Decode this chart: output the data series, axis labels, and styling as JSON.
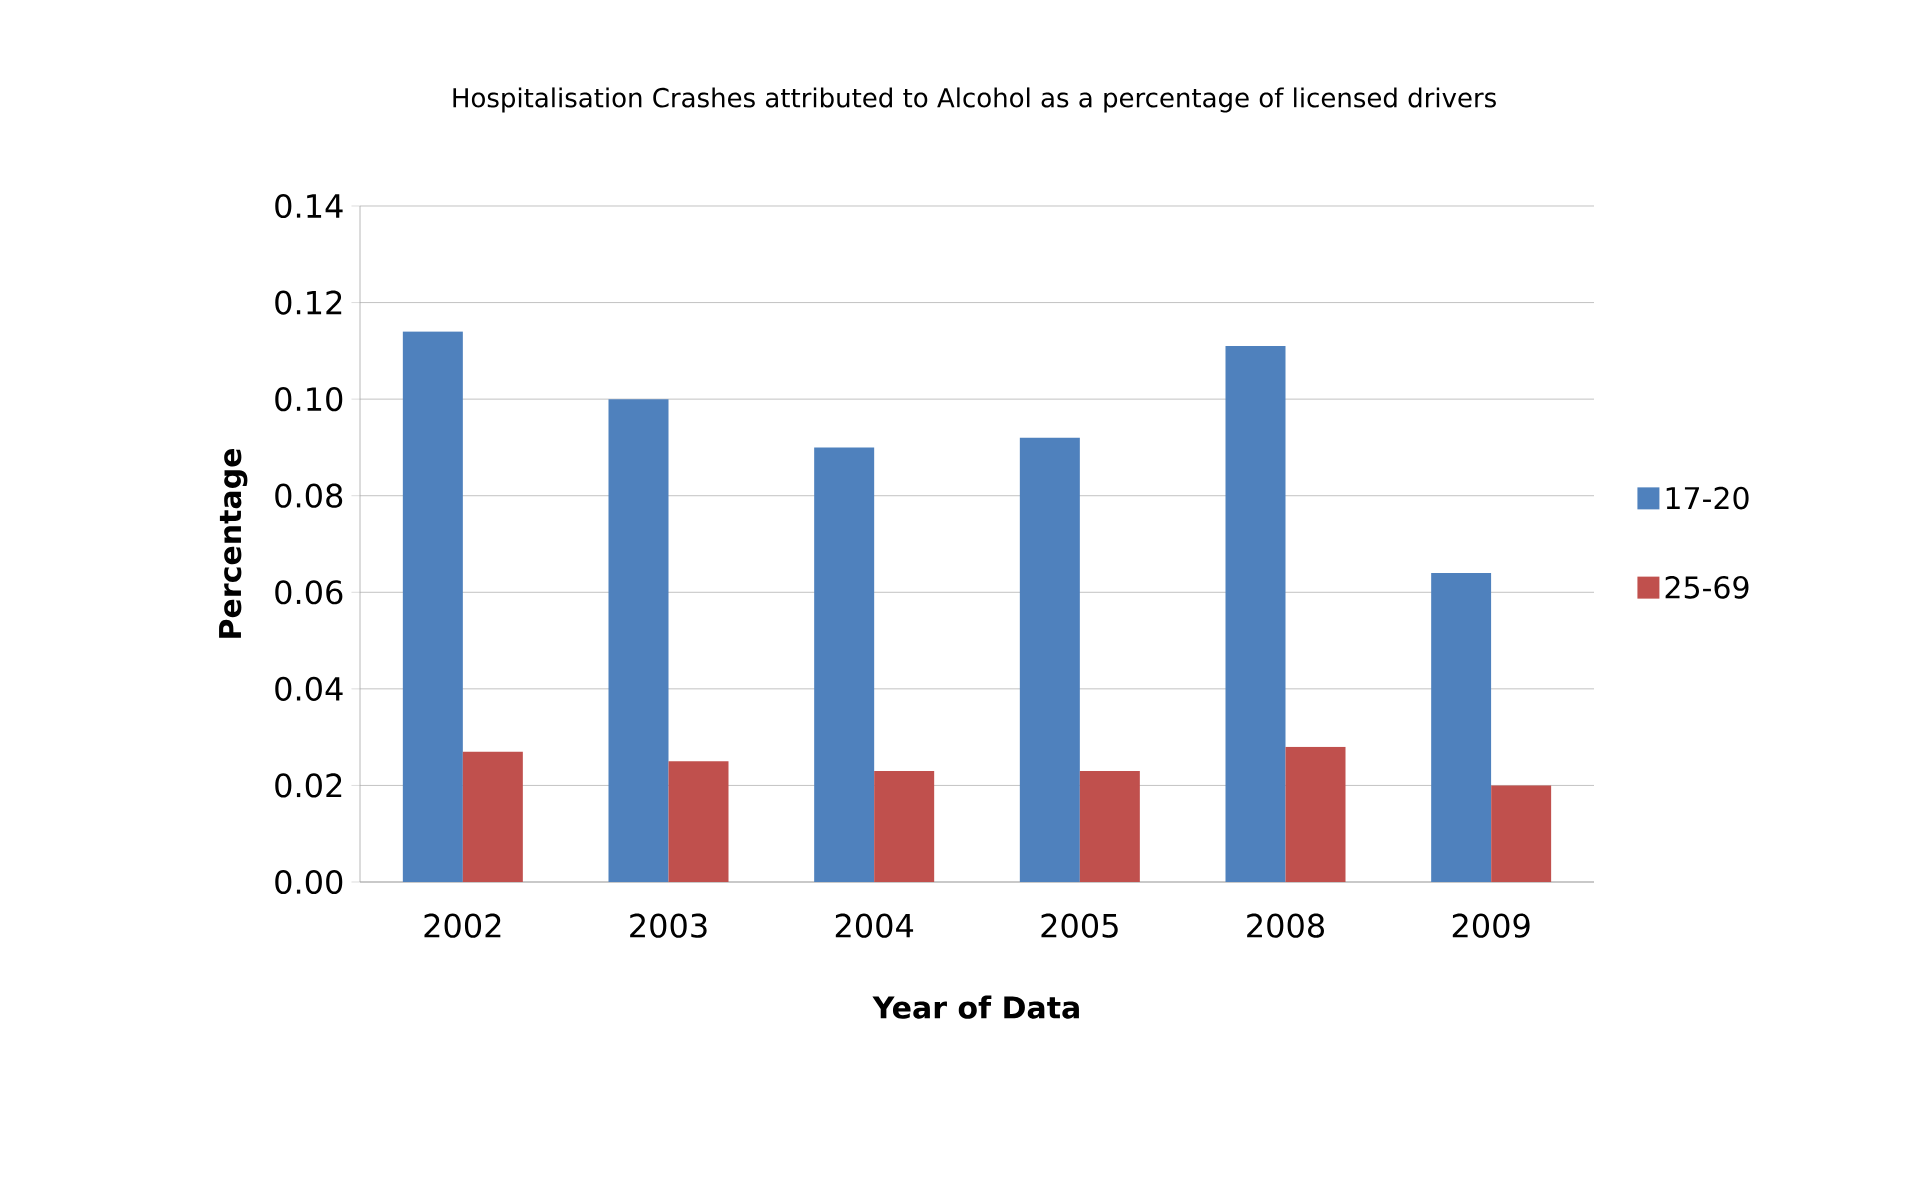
{
  "chart_data": {
    "type": "bar",
    "title": "Hospitalisation Crashes attributed to Alcohol as a percentage of licensed drivers",
    "xlabel": "Year of Data",
    "ylabel": "Percentage",
    "categories": [
      "2002",
      "2003",
      "2004",
      "2005",
      "2008",
      "2009"
    ],
    "series": [
      {
        "name": "17-20",
        "color": "#4f81bd",
        "values": [
          0.114,
          0.1,
          0.09,
          0.092,
          0.111,
          0.064
        ]
      },
      {
        "name": "25-69",
        "color": "#c0504d",
        "values": [
          0.027,
          0.025,
          0.023,
          0.023,
          0.028,
          0.02
        ]
      }
    ],
    "ylim": [
      0,
      0.14
    ],
    "yticks": [
      {
        "value": 0,
        "label": "0.00"
      },
      {
        "value": 0.02,
        "label": "0.02"
      },
      {
        "value": 0.04,
        "label": "0.04"
      },
      {
        "value": 0.06,
        "label": "0.06"
      },
      {
        "value": 0.08,
        "label": "0.08"
      },
      {
        "value": 0.1,
        "label": "0.10"
      },
      {
        "value": 0.12,
        "label": "0.12"
      },
      {
        "value": 0.14,
        "label": "0.14"
      }
    ],
    "grid": "y",
    "legend": "right"
  }
}
